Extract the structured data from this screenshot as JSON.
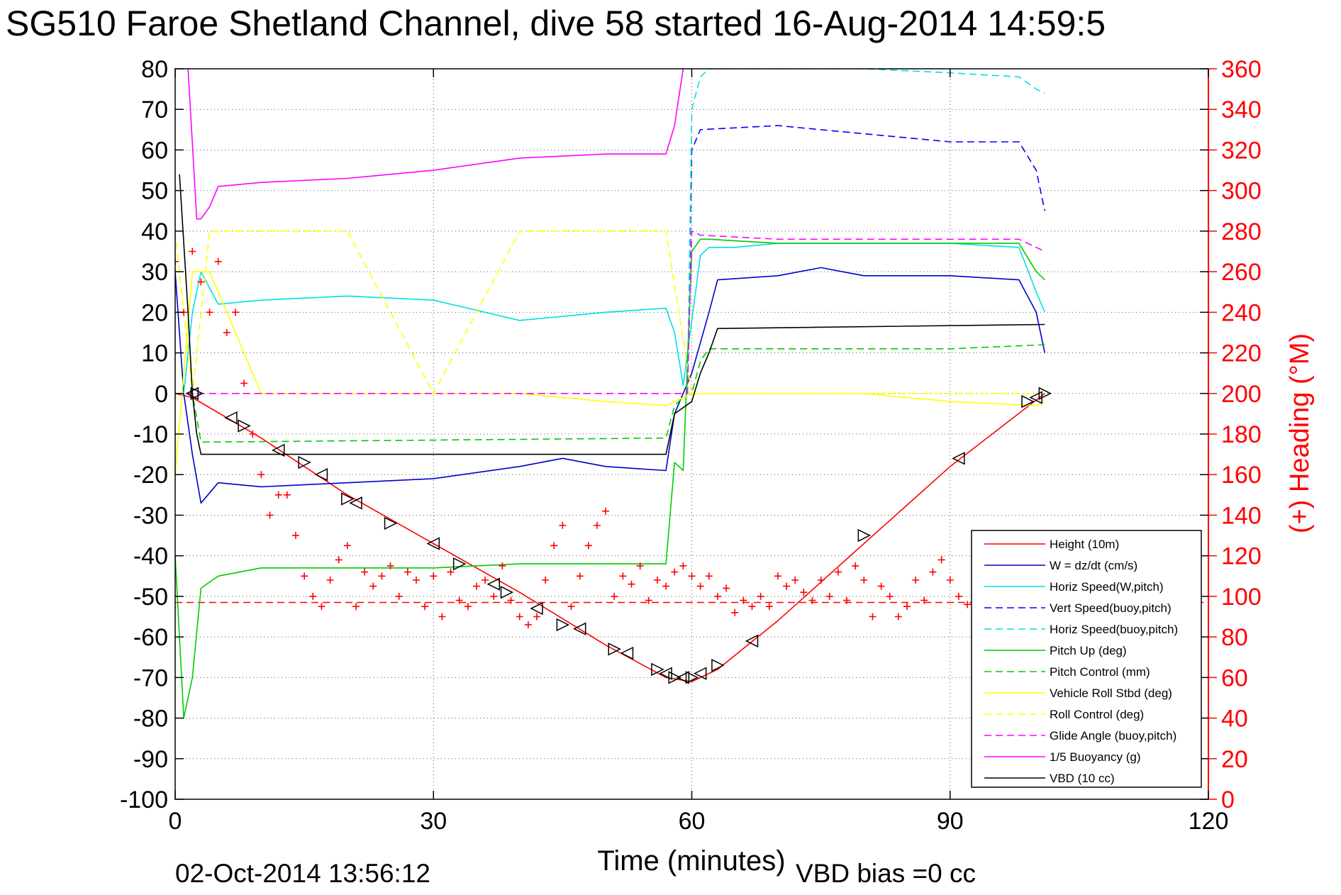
{
  "chart_data": {
    "type": "line",
    "title": "SG510 Faroe Shetland Channel, dive 58 started 16-Aug-2014 14:59:5",
    "xlabel": "Time (minutes)",
    "ylabel": "",
    "ylabel_right": "(+) Heading (°M)",
    "xlim": [
      0,
      120
    ],
    "ylim": [
      -100,
      80
    ],
    "ylim_right": [
      0,
      360
    ],
    "x_ticks": [
      "0",
      "30",
      "60",
      "90",
      "120"
    ],
    "y_ticks": [
      "80",
      "70",
      "60",
      "50",
      "40",
      "30",
      "20",
      "10",
      "0",
      "-10",
      "-20",
      "-30",
      "-40",
      "-50",
      "-60",
      "-70",
      "-80",
      "-90",
      "-100"
    ],
    "y2_ticks": [
      "360",
      "340",
      "320",
      "300",
      "280",
      "260",
      "240",
      "220",
      "200",
      "180",
      "160",
      "140",
      "120",
      "100",
      "80",
      "60",
      "40",
      "20",
      "0"
    ],
    "grid": true,
    "legend_position": "bottom-right",
    "footer_left": "02-Oct-2014 13:56:12",
    "footer_right": "VBD bias =0 cc",
    "series": [
      {
        "name": "Height (10m)",
        "color": "#ff0000",
        "style": "solid",
        "x": [
          0,
          2,
          10,
          20,
          30,
          40,
          50,
          57,
          60,
          63,
          70,
          80,
          90,
          101
        ],
        "y": [
          0,
          -1,
          -11,
          -25,
          -37,
          -49,
          -62,
          -70,
          -71,
          -68,
          -56,
          -37,
          -18,
          0
        ]
      },
      {
        "name": "W = dz/dt (cm/s)",
        "color": "#0000cc",
        "style": "solid",
        "x": [
          0,
          1,
          2,
          3,
          5,
          10,
          20,
          30,
          40,
          45,
          50,
          57,
          58,
          60,
          62,
          63,
          70,
          75,
          80,
          90,
          98,
          100,
          101
        ],
        "y": [
          30,
          0,
          -15,
          -27,
          -22,
          -23,
          -22,
          -21,
          -18,
          -16,
          -18,
          -19,
          -5,
          5,
          20,
          28,
          29,
          31,
          29,
          29,
          28,
          20,
          10
        ]
      },
      {
        "name": "Horiz Speed(W,pitch)",
        "color": "#00e0e0",
        "style": "solid",
        "x": [
          1,
          2,
          3,
          5,
          10,
          20,
          30,
          40,
          50,
          57,
          58,
          59,
          60,
          61,
          62,
          65,
          70,
          80,
          90,
          98,
          100,
          101
        ],
        "y": [
          0,
          20,
          30,
          22,
          23,
          24,
          23,
          18,
          20,
          21,
          15,
          2,
          18,
          34,
          36,
          36,
          37,
          37,
          37,
          36,
          25,
          20
        ]
      },
      {
        "name": "Vert Speed(buoy,pitch)",
        "color": "#0000ff",
        "style": "dashed",
        "x": [
          59.5,
          60,
          61,
          70,
          80,
          90,
          98,
          100,
          101
        ],
        "y": [
          0,
          60,
          65,
          66,
          64,
          62,
          62,
          55,
          45
        ]
      },
      {
        "name": "Horiz Speed(buoy,pitch)",
        "color": "#00e0e0",
        "style": "dashed",
        "x": [
          59.5,
          60,
          61,
          62,
          70,
          80,
          90,
          98,
          100,
          101
        ],
        "y": [
          0,
          70,
          78,
          80,
          80,
          80,
          79,
          78,
          75,
          74
        ]
      },
      {
        "name": "Pitch Up (deg)",
        "color": "#00cc00",
        "style": "solid",
        "x": [
          0,
          1,
          2,
          3,
          5,
          10,
          20,
          30,
          40,
          50,
          57,
          58,
          59,
          60,
          61,
          62,
          70,
          80,
          90,
          98,
          100,
          101
        ],
        "y": [
          -40,
          -80,
          -70,
          -48,
          -45,
          -43,
          -43,
          -43,
          -42,
          -42,
          -42,
          -17,
          -19,
          35,
          38,
          38,
          37,
          37,
          37,
          37,
          30,
          28
        ]
      },
      {
        "name": "Pitch Control (mm)",
        "color": "#00cc00",
        "style": "dashed",
        "x": [
          0,
          2,
          3,
          57,
          58,
          59,
          60,
          61,
          62,
          70,
          80,
          90,
          101
        ],
        "y": [
          0,
          0,
          -12,
          -11,
          -3,
          -1,
          0,
          8,
          11,
          11,
          11,
          11,
          12
        ]
      },
      {
        "name": "Vehicle Roll Stbd (deg)",
        "color": "#ffff00",
        "style": "solid",
        "x": [
          0,
          2,
          4,
          10,
          20,
          30,
          40,
          50,
          57,
          60,
          70,
          80,
          90,
          100,
          101
        ],
        "y": [
          -20,
          30,
          30,
          0,
          0,
          0,
          0,
          -2,
          -3,
          0,
          0,
          0,
          -2,
          -3,
          -2
        ]
      },
      {
        "name": "Roll Control (deg)",
        "color": "#ffff00",
        "style": "dashed",
        "x": [
          0,
          2,
          4,
          10,
          20,
          30,
          40,
          50,
          57,
          60,
          70,
          80,
          90,
          100,
          101
        ],
        "y": [
          40,
          0,
          40,
          40,
          40,
          0,
          40,
          40,
          40,
          0,
          0,
          0,
          0,
          0,
          0
        ]
      },
      {
        "name": "Glide Angle (buoy,pitch)",
        "color": "#ff00ff",
        "style": "dashed",
        "x": [
          0,
          59.5,
          60,
          61,
          70,
          80,
          90,
          98,
          100,
          101
        ],
        "y": [
          0,
          0,
          40,
          39,
          38,
          38,
          38,
          38,
          36,
          35
        ]
      },
      {
        "name": "1/5 Buoyancy (g)",
        "color": "#ff00ff",
        "style": "solid",
        "x": [
          1.5,
          2.5,
          3,
          4,
          5,
          10,
          20,
          30,
          40,
          50,
          57,
          58,
          59
        ],
        "y": [
          80,
          43,
          43,
          46,
          51,
          52,
          53,
          55,
          58,
          59,
          59,
          66,
          80
        ]
      },
      {
        "name": "VBD (10 cc)",
        "color": "#000000",
        "style": "solid",
        "x": [
          0.5,
          1.5,
          2,
          2.5,
          3,
          57,
          58,
          60,
          61,
          62,
          63,
          101
        ],
        "y": [
          54,
          20,
          0,
          -10,
          -15,
          -15,
          -5,
          -2,
          5,
          10,
          16,
          17
        ]
      }
    ],
    "heading": {
      "name": "(+) Heading (°M)",
      "axis": "right",
      "color": "#ff0000",
      "marker": "+",
      "x": [
        0,
        1,
        2,
        3,
        4,
        5,
        6,
        7,
        8,
        9,
        10,
        11,
        12,
        13,
        14,
        15,
        16,
        17,
        18,
        19,
        20,
        21,
        22,
        23,
        24,
        25,
        26,
        27,
        28,
        29,
        30,
        31,
        32,
        33,
        34,
        35,
        36,
        37,
        38,
        39,
        40,
        41,
        42,
        43,
        44,
        45,
        46,
        47,
        48,
        49,
        50,
        51,
        52,
        53,
        54,
        55,
        56,
        57,
        58,
        59,
        60,
        61,
        62,
        63,
        64,
        65,
        66,
        67,
        68,
        69,
        70,
        71,
        72,
        73,
        74,
        75,
        76,
        77,
        78,
        79,
        80,
        81,
        82,
        83,
        84,
        85,
        86,
        87,
        88,
        89,
        90,
        91,
        92
      ],
      "y": [
        265,
        240,
        270,
        255,
        240,
        265,
        230,
        240,
        205,
        180,
        160,
        140,
        150,
        150,
        130,
        110,
        100,
        95,
        108,
        118,
        125,
        95,
        112,
        105,
        110,
        115,
        100,
        112,
        108,
        95,
        110,
        90,
        112,
        98,
        95,
        105,
        108,
        100,
        115,
        98,
        90,
        86,
        90,
        108,
        125,
        135,
        95,
        110,
        125,
        135,
        142,
        100,
        110,
        106,
        115,
        98,
        108,
        105,
        112,
        115,
        110,
        105,
        110,
        100,
        104,
        92,
        98,
        95,
        100,
        95,
        110,
        105,
        108,
        102,
        98,
        108,
        100,
        112,
        98,
        115,
        108,
        90,
        105,
        100,
        90,
        95,
        108,
        98,
        112,
        118,
        108,
        100,
        96
      ]
    },
    "references": [
      {
        "name": "heading reference",
        "axis": "right",
        "color": "#ff0000",
        "style": "dashed",
        "y": 97
      }
    ],
    "apogee_markers": {
      "x": [
        2,
        2.5,
        6.5,
        8,
        12,
        15,
        17,
        20,
        21,
        25,
        30,
        33,
        37,
        38.5,
        42,
        45,
        47,
        51,
        52.5,
        56,
        57,
        58,
        59,
        60,
        61,
        63,
        67,
        80,
        91,
        99,
        100,
        101
      ],
      "y": [
        0,
        0,
        -6,
        -8,
        -14,
        -17,
        -20,
        -26,
        -27,
        -32,
        -37,
        -42,
        -47,
        -49,
        -53,
        -57,
        -58,
        -63,
        -64,
        -68,
        -69,
        -70,
        -70,
        -70,
        -69,
        -67,
        -61,
        -35,
        -16,
        -2,
        -1,
        0
      ]
    }
  }
}
